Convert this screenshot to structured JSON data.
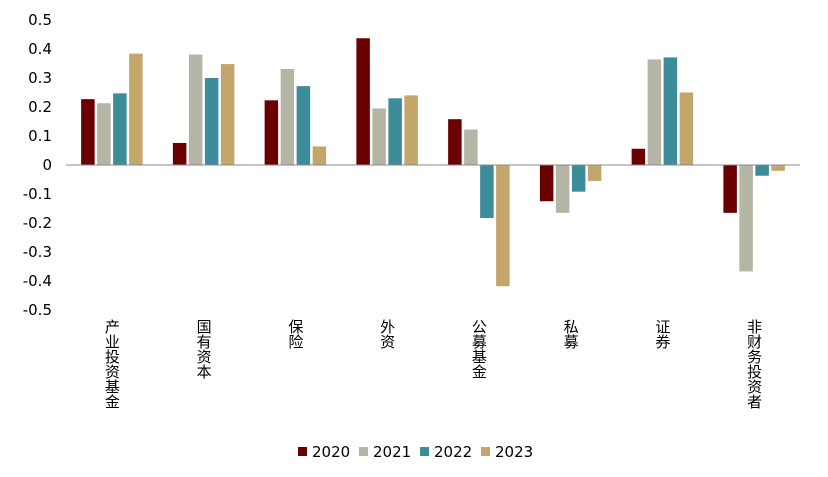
{
  "chart_data": {
    "type": "bar",
    "title": "",
    "xlabel": "",
    "ylabel": "",
    "ylim": [
      -0.5,
      0.5
    ],
    "yticks": [
      "0.5",
      "0.4",
      "0.3",
      "0.2",
      "0.1",
      "0",
      "-0.1",
      "-0.2",
      "-0.3",
      "-0.4",
      "-0.5"
    ],
    "grid": false,
    "legend_position": "bottom",
    "categories": [
      "产业投资基金",
      "国有资本",
      "保险",
      "外资",
      "公募基金",
      "私募",
      "证券",
      "非财务投资者"
    ],
    "series": [
      {
        "name": "2020",
        "color": "#6B0000",
        "values": [
          0.227,
          0.076,
          0.223,
          0.437,
          0.158,
          -0.125,
          0.056,
          -0.165
        ]
      },
      {
        "name": "2021",
        "color": "#B5B5A6",
        "values": [
          0.213,
          0.381,
          0.331,
          0.195,
          0.122,
          -0.165,
          0.364,
          -0.367
        ]
      },
      {
        "name": "2022",
        "color": "#3C8C9A",
        "values": [
          0.247,
          0.3,
          0.272,
          0.23,
          -0.183,
          -0.092,
          0.371,
          -0.037
        ]
      },
      {
        "name": "2023",
        "color": "#C4A56A",
        "values": [
          0.384,
          0.348,
          0.064,
          0.24,
          -0.418,
          -0.055,
          0.25,
          -0.02
        ]
      }
    ]
  }
}
